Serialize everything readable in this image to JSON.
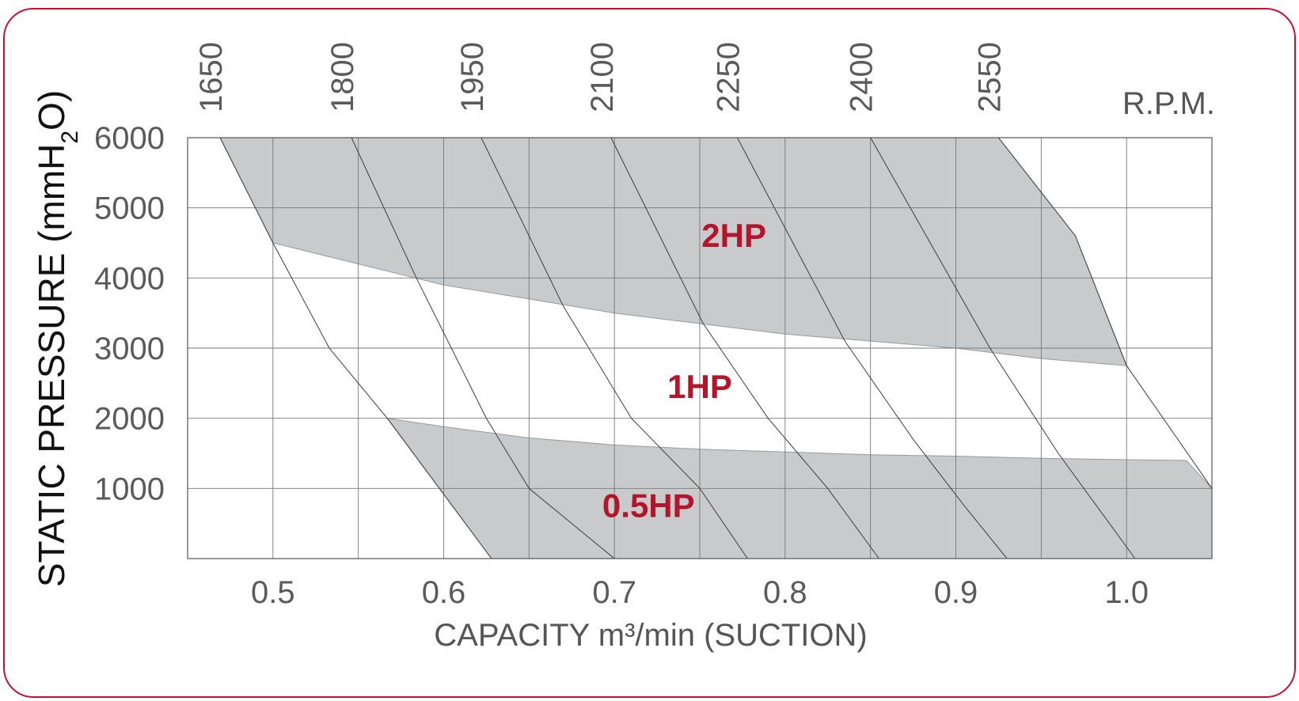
{
  "chart_data": {
    "type": "area",
    "xlabel": "CAPACITY m³/min (SUCTION)",
    "ylabel": "STATIC PRESSURE (mmH2O)",
    "ylabel_parts": {
      "main": "STATIC PRESSURE (mmH",
      "sub": "2",
      "end": "O)"
    },
    "xlim": [
      0.45,
      1.05
    ],
    "ylim": [
      0,
      6000
    ],
    "grid": true,
    "x_ticks": [
      0.45,
      0.5,
      0.55,
      0.6,
      0.65,
      0.7,
      0.75,
      0.8,
      0.85,
      0.9,
      0.95,
      1.0,
      1.05
    ],
    "x_tick_labels": [
      {
        "value": 0.5,
        "label": "0.5"
      },
      {
        "value": 0.6,
        "label": "0.6"
      },
      {
        "value": 0.7,
        "label": "0.7"
      },
      {
        "value": 0.8,
        "label": "0.8"
      },
      {
        "value": 0.9,
        "label": "0.9"
      },
      {
        "value": 1.0,
        "label": "1.0"
      }
    ],
    "y_ticks": [
      {
        "value": 1000,
        "label": "1000"
      },
      {
        "value": 2000,
        "label": "2000"
      },
      {
        "value": 3000,
        "label": "3000"
      },
      {
        "value": 4000,
        "label": "4000"
      },
      {
        "value": 5000,
        "label": "5000"
      },
      {
        "value": 6000,
        "label": "6000"
      }
    ],
    "rpm_unit_label": "R.P.M.",
    "rpm_lines": [
      {
        "label": "1650",
        "points": [
          [
            0.469,
            6000
          ],
          [
            0.5,
            4500
          ],
          [
            0.533,
            3000
          ],
          [
            0.567,
            2000
          ],
          [
            0.628,
            0
          ]
        ]
      },
      {
        "label": "1800",
        "points": [
          [
            0.546,
            6000
          ],
          [
            0.584,
            4000
          ],
          [
            0.625,
            2000
          ],
          [
            0.65,
            1000
          ],
          [
            0.7,
            0
          ]
        ]
      },
      {
        "label": "1950",
        "points": [
          [
            0.622,
            6000
          ],
          [
            0.67,
            3600
          ],
          [
            0.71,
            2000
          ],
          [
            0.75,
            1000
          ],
          [
            0.778,
            0
          ]
        ]
      },
      {
        "label": "2100",
        "points": [
          [
            0.698,
            6000
          ],
          [
            0.752,
            3350
          ],
          [
            0.79,
            2000
          ],
          [
            0.825,
            1000
          ],
          [
            0.855,
            0
          ]
        ]
      },
      {
        "label": "2250",
        "points": [
          [
            0.772,
            6000
          ],
          [
            0.835,
            3100
          ],
          [
            0.875,
            1700
          ],
          [
            0.905,
            750
          ],
          [
            0.93,
            0
          ]
        ]
      },
      {
        "label": "2400",
        "points": [
          [
            0.85,
            6000
          ],
          [
            0.92,
            3000
          ],
          [
            0.96,
            1500
          ],
          [
            0.99,
            500
          ],
          [
            1.005,
            0
          ]
        ]
      },
      {
        "label": "2550",
        "points": [
          [
            0.925,
            6000
          ],
          [
            0.97,
            4600
          ],
          [
            1.0,
            2750
          ],
          [
            1.05,
            1000
          ]
        ]
      }
    ],
    "regions": [
      {
        "name": "2HP",
        "fill": "#c9cacc",
        "points": [
          [
            0.469,
            6000
          ],
          [
            0.925,
            6000
          ],
          [
            0.97,
            4600
          ],
          [
            1.0,
            2750
          ],
          [
            0.95,
            2850
          ],
          [
            0.9,
            3000
          ],
          [
            0.85,
            3100
          ],
          [
            0.8,
            3200
          ],
          [
            0.75,
            3350
          ],
          [
            0.7,
            3500
          ],
          [
            0.65,
            3700
          ],
          [
            0.6,
            3900
          ],
          [
            0.55,
            4200
          ],
          [
            0.5,
            4500
          ]
        ]
      },
      {
        "name": "0.5HP",
        "fill": "#c9cacc",
        "points": [
          [
            0.567,
            2000
          ],
          [
            0.6,
            1880
          ],
          [
            0.65,
            1720
          ],
          [
            0.7,
            1620
          ],
          [
            0.75,
            1560
          ],
          [
            0.8,
            1520
          ],
          [
            0.85,
            1480
          ],
          [
            0.9,
            1460
          ],
          [
            0.95,
            1430
          ],
          [
            1.0,
            1410
          ],
          [
            1.035,
            1400
          ],
          [
            1.05,
            1000
          ],
          [
            1.05,
            0
          ],
          [
            0.628,
            0
          ]
        ]
      }
    ],
    "annotations": [
      {
        "text": "2HP",
        "x": 0.77,
        "y": 4600
      },
      {
        "text": "1HP",
        "x": 0.75,
        "y": 2450
      },
      {
        "text": "0.5HP",
        "x": 0.72,
        "y": 750
      }
    ],
    "colors": {
      "region_fill": "#c9cacc",
      "label_red": "#b5152b",
      "border": "#c8102e"
    }
  }
}
